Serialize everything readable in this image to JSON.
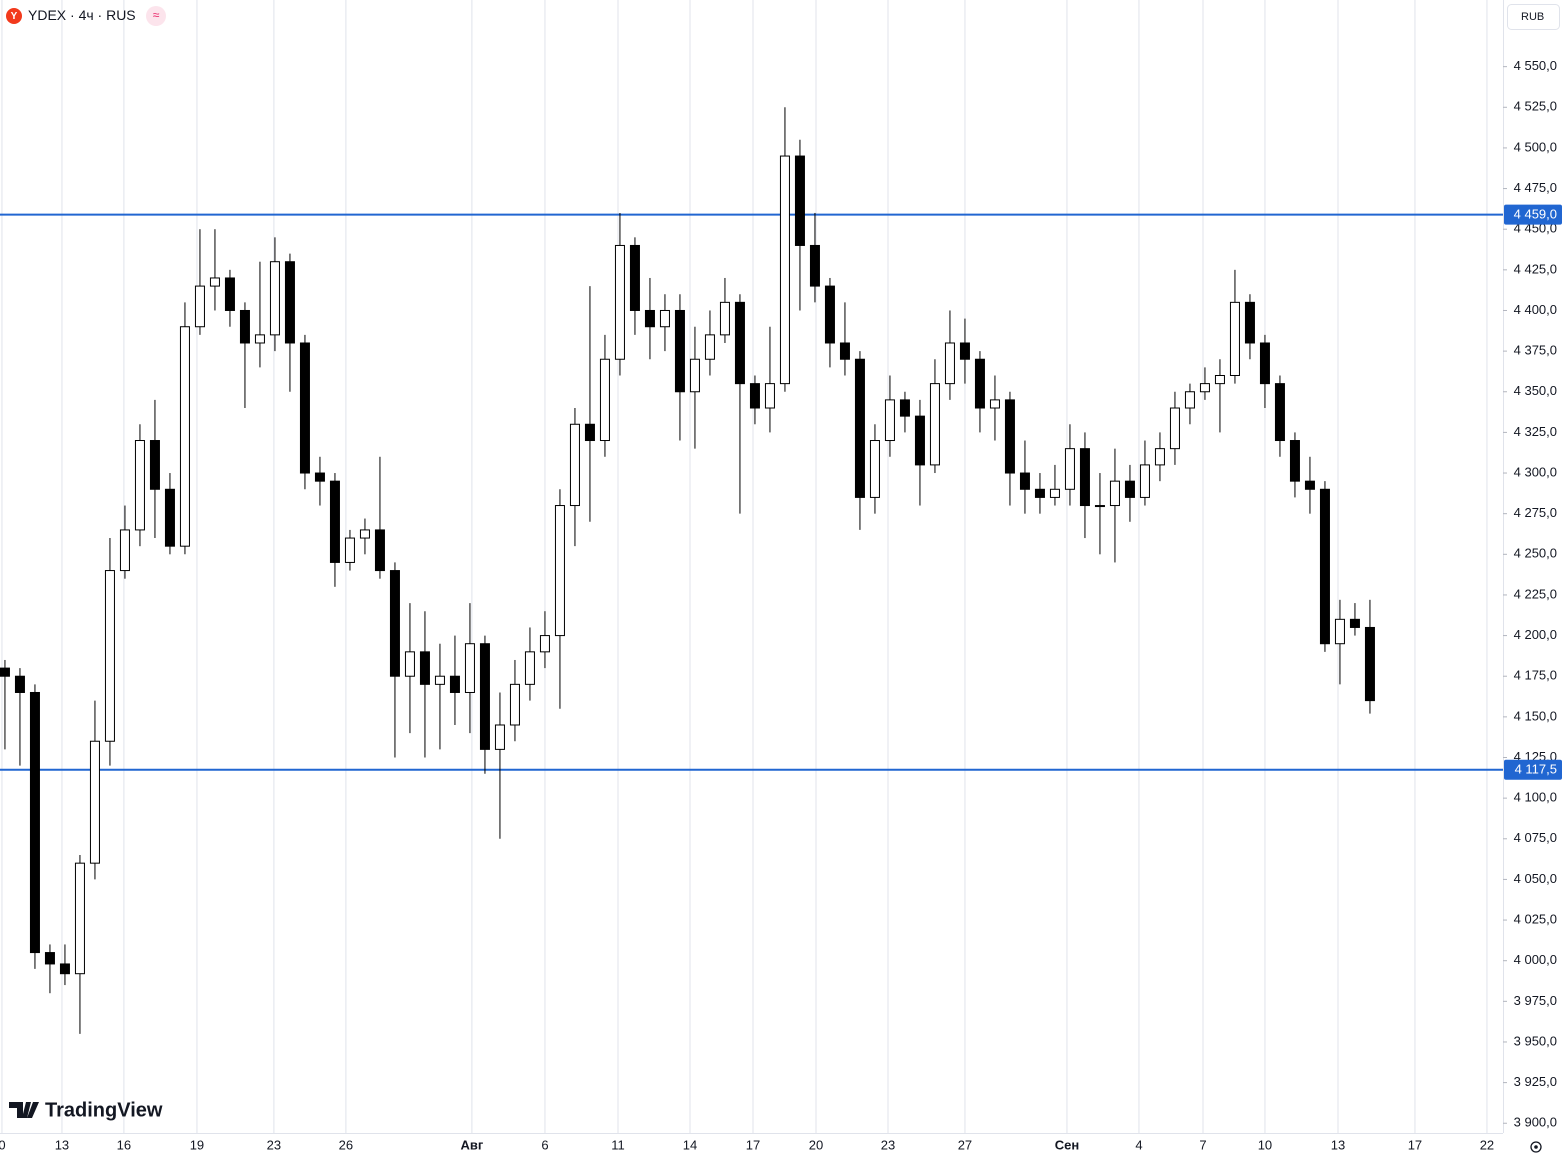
{
  "chart_data": {
    "type": "candlestick",
    "logo_letter": "Y",
    "title": "YDEX · 4ч · RUS",
    "badge": "≈",
    "currency": "RUB",
    "watermark": "TradingView",
    "up_color": "#ffffff",
    "down_color": "#000000",
    "outline_color": "#000000",
    "grid": "x",
    "grid_color": "#e0e3eb",
    "level_color": "#2166d1",
    "levels": [
      {
        "value": 4459.0,
        "label": "4 459,0"
      },
      {
        "value": 4117.5,
        "label": "4 117,5"
      }
    ],
    "xlim": [
      -0.33,
      99.87
    ],
    "ylim": [
      3894,
      4591
    ],
    "xticks": [
      {
        "value": -0.2,
        "label": "0"
      },
      {
        "value": 3.8,
        "label": "13"
      },
      {
        "value": 7.93,
        "label": "16"
      },
      {
        "value": 12.8,
        "label": "19"
      },
      {
        "value": 17.93,
        "label": "23"
      },
      {
        "value": 22.73,
        "label": "26"
      },
      {
        "value": 31.13,
        "label": "Авг"
      },
      {
        "value": 36,
        "label": "6"
      },
      {
        "value": 40.87,
        "label": "11"
      },
      {
        "value": 45.67,
        "label": "14"
      },
      {
        "value": 49.87,
        "label": "17"
      },
      {
        "value": 54.07,
        "label": "20"
      },
      {
        "value": 58.87,
        "label": "23"
      },
      {
        "value": 64,
        "label": "27"
      },
      {
        "value": 70.8,
        "label": "Сен"
      },
      {
        "value": 75.6,
        "label": "4"
      },
      {
        "value": 79.87,
        "label": "7"
      },
      {
        "value": 84,
        "label": "10"
      },
      {
        "value": 88.87,
        "label": "13"
      },
      {
        "value": 94,
        "label": "17"
      },
      {
        "value": 98.8,
        "label": "22"
      }
    ],
    "yticks": [
      {
        "value": 3900,
        "label": "3 900,0"
      },
      {
        "value": 3925,
        "label": "3 925,0"
      },
      {
        "value": 3950,
        "label": "3 950,0"
      },
      {
        "value": 3975,
        "label": "3 975,0"
      },
      {
        "value": 4000,
        "label": "4 000,0"
      },
      {
        "value": 4025,
        "label": "4 025,0"
      },
      {
        "value": 4050,
        "label": "4 050,0"
      },
      {
        "value": 4075,
        "label": "4 075,0"
      },
      {
        "value": 4100,
        "label": "4 100,0"
      },
      {
        "value": 4125,
        "label": "4 125,0"
      },
      {
        "value": 4150,
        "label": "4 150,0"
      },
      {
        "value": 4175,
        "label": "4 175,0"
      },
      {
        "value": 4200,
        "label": "4 200,0"
      },
      {
        "value": 4225,
        "label": "4 225,0"
      },
      {
        "value": 4250,
        "label": "4 250,0"
      },
      {
        "value": 4275,
        "label": "4 275,0"
      },
      {
        "value": 4300,
        "label": "4 300,0"
      },
      {
        "value": 4325,
        "label": "4 325,0"
      },
      {
        "value": 4350,
        "label": "4 350,0"
      },
      {
        "value": 4375,
        "label": "4 375,0"
      },
      {
        "value": 4400,
        "label": "4 400,0"
      },
      {
        "value": 4425,
        "label": "4 425,0"
      },
      {
        "value": 4450,
        "label": "4 450,0"
      },
      {
        "value": 4475,
        "label": "4 475,0"
      },
      {
        "value": 4500,
        "label": "4 500,0"
      },
      {
        "value": 4525,
        "label": "4 525,0"
      },
      {
        "value": 4550,
        "label": "4 550,0"
      }
    ],
    "x": [
      0,
      1,
      2,
      3,
      4,
      5,
      6,
      7,
      8,
      9,
      10,
      11,
      12,
      13,
      14,
      15,
      16,
      17,
      18,
      19,
      20,
      21,
      22,
      23,
      24,
      25,
      26,
      27,
      28,
      29,
      30,
      31,
      32,
      33,
      34,
      35,
      36,
      37,
      38,
      39,
      40,
      41,
      42,
      43,
      44,
      45,
      46,
      47,
      48,
      49,
      50,
      51,
      52,
      53,
      54,
      55,
      56,
      57,
      58,
      59,
      60,
      61,
      62,
      63,
      64,
      65,
      66,
      67,
      68,
      69,
      70,
      71,
      72,
      73,
      74,
      75,
      76,
      77,
      78,
      79,
      80,
      81,
      82,
      83,
      84,
      85,
      86,
      87,
      88,
      89,
      90,
      91
    ],
    "open": [
      4180,
      4175,
      4165,
      4005,
      3998,
      3992,
      4060,
      4135,
      4240,
      4265,
      4320,
      4290,
      4255,
      4390,
      4415,
      4420,
      4400,
      4380,
      4385,
      4430,
      4380,
      4300,
      4295,
      4245,
      4260,
      4265,
      4240,
      4175,
      4190,
      4170,
      4175,
      4165,
      4195,
      4130,
      4145,
      4170,
      4190,
      4200,
      4280,
      4330,
      4320,
      4370,
      4440,
      4400,
      4390,
      4400,
      4350,
      4370,
      4385,
      4405,
      4355,
      4340,
      4355,
      4495,
      4440,
      4415,
      4380,
      4370,
      4285,
      4320,
      4345,
      4335,
      4305,
      4355,
      4380,
      4370,
      4340,
      4345,
      4300,
      4290,
      4285,
      4290,
      4315,
      4280,
      4280,
      4295,
      4285,
      4305,
      4315,
      4340,
      4350,
      4355,
      4360,
      4405,
      4380,
      4355,
      4320,
      4295,
      4290,
      4195,
      4210,
      4205
    ],
    "high": [
      4185,
      4180,
      4170,
      4010,
      4010,
      4065,
      4160,
      4260,
      4280,
      4330,
      4345,
      4300,
      4405,
      4450,
      4450,
      4425,
      4405,
      4430,
      4445,
      4435,
      4385,
      4310,
      4300,
      4265,
      4272,
      4310,
      4245,
      4220,
      4215,
      4195,
      4200,
      4220,
      4200,
      4165,
      4185,
      4205,
      4215,
      4290,
      4340,
      4415,
      4385,
      4460,
      4445,
      4420,
      4410,
      4410,
      4390,
      4400,
      4420,
      4410,
      4360,
      4390,
      4525,
      4505,
      4460,
      4420,
      4405,
      4375,
      4330,
      4360,
      4350,
      4345,
      4370,
      4400,
      4395,
      4375,
      4360,
      4350,
      4320,
      4300,
      4305,
      4330,
      4325,
      4300,
      4315,
      4305,
      4320,
      4325,
      4350,
      4355,
      4365,
      4370,
      4425,
      4410,
      4385,
      4360,
      4325,
      4310,
      4295,
      4222,
      4220,
      4222
    ],
    "low": [
      4130,
      4120,
      3995,
      3980,
      3985,
      3955,
      4050,
      4120,
      4235,
      4255,
      4260,
      4250,
      4250,
      4385,
      4400,
      4390,
      4340,
      4365,
      4375,
      4350,
      4290,
      4280,
      4230,
      4240,
      4250,
      4235,
      4125,
      4140,
      4125,
      4130,
      4145,
      4140,
      4115,
      4075,
      4135,
      4160,
      4180,
      4155,
      4255,
      4270,
      4310,
      4360,
      4385,
      4370,
      4375,
      4320,
      4315,
      4360,
      4380,
      4275,
      4330,
      4325,
      4350,
      4400,
      4405,
      4365,
      4360,
      4265,
      4275,
      4310,
      4325,
      4280,
      4300,
      4345,
      4355,
      4325,
      4320,
      4280,
      4275,
      4275,
      4280,
      4280,
      4260,
      4250,
      4245,
      4270,
      4280,
      4295,
      4305,
      4330,
      4345,
      4325,
      4355,
      4370,
      4340,
      4310,
      4285,
      4275,
      4190,
      4170,
      4200,
      4152
    ],
    "close": [
      4175,
      4165,
      4005,
      3998,
      3992,
      4060,
      4135,
      4240,
      4265,
      4320,
      4290,
      4255,
      4390,
      4415,
      4420,
      4400,
      4380,
      4385,
      4430,
      4380,
      4300,
      4295,
      4245,
      4260,
      4265,
      4240,
      4175,
      4190,
      4170,
      4175,
      4165,
      4195,
      4130,
      4145,
      4170,
      4190,
      4200,
      4280,
      4330,
      4320,
      4370,
      4440,
      4400,
      4390,
      4400,
      4350,
      4370,
      4385,
      4405,
      4355,
      4340,
      4355,
      4495,
      4440,
      4415,
      4380,
      4370,
      4285,
      4320,
      4345,
      4335,
      4305,
      4355,
      4380,
      4370,
      4340,
      4345,
      4300,
      4290,
      4285,
      4290,
      4315,
      4280,
      4280,
      4295,
      4285,
      4305,
      4315,
      4340,
      4350,
      4355,
      4360,
      4405,
      4380,
      4355,
      4320,
      4295,
      4290,
      4195,
      4210,
      4205,
      4160
    ]
  }
}
